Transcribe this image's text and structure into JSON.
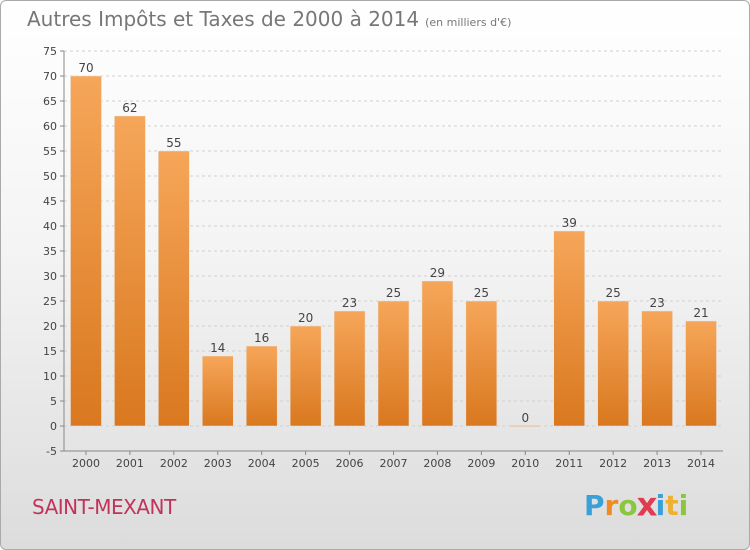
{
  "title": "Autres Impôts et Taxes de 2000 à 2014",
  "subtitle": "(en milliers d'€)",
  "commune": "SAINT-MEXANT",
  "logo": {
    "letters": [
      "P",
      "r",
      "o",
      "x",
      "i",
      "t",
      "i"
    ],
    "colors": [
      "#3aa0d8",
      "#f08a24",
      "#8cc63e",
      "#e23a4e",
      "#3aa0d8",
      "#f0b030",
      "#8cc63e"
    ]
  },
  "colors": {
    "bar_top": "#f6a659",
    "bar_bottom": "#d9781f",
    "title": "#777777",
    "commune": "#c1335a"
  },
  "chart_data": {
    "type": "bar",
    "categories": [
      "2000",
      "2001",
      "2002",
      "2003",
      "2004",
      "2005",
      "2006",
      "2007",
      "2008",
      "2009",
      "2010",
      "2011",
      "2012",
      "2013",
      "2014"
    ],
    "values": [
      70,
      62,
      55,
      14,
      16,
      20,
      23,
      25,
      29,
      25,
      0,
      39,
      25,
      23,
      21
    ],
    "data_labels": [
      "70",
      "62",
      "55",
      "14",
      "16",
      "20",
      "23",
      "25",
      "29",
      "25",
      "0",
      "39",
      "25",
      "23",
      "21"
    ],
    "title": "Autres Impôts et Taxes de 2000 à 2014",
    "xlabel": "",
    "ylabel": "",
    "ylim": [
      -5,
      75
    ],
    "yticks": [
      -5,
      0,
      5,
      10,
      15,
      20,
      25,
      30,
      35,
      40,
      45,
      50,
      55,
      60,
      65,
      70,
      75
    ],
    "grid": true,
    "legend": "none"
  }
}
